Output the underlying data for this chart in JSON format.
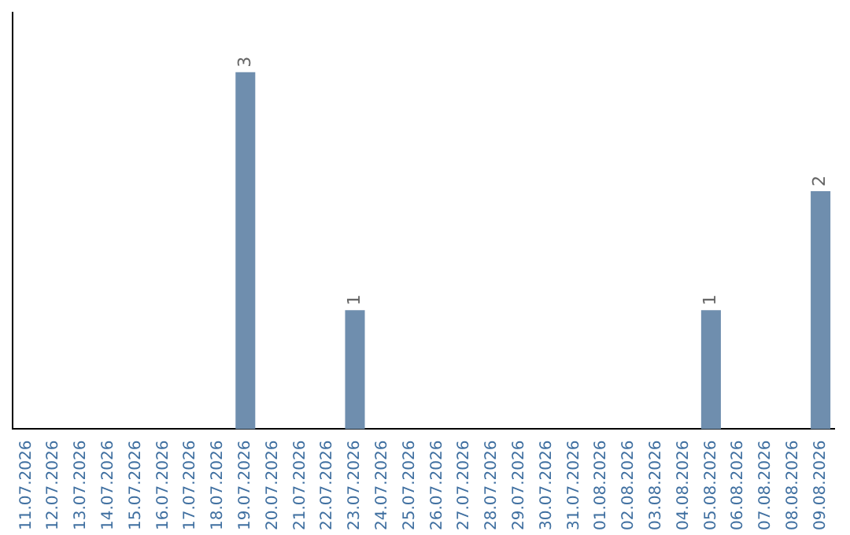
{
  "chart_data": {
    "type": "bar",
    "categories": [
      "11.07.2026",
      "12.07.2026",
      "13.07.2026",
      "14.07.2026",
      "15.07.2026",
      "16.07.2026",
      "17.07.2026",
      "18.07.2026",
      "19.07.2026",
      "20.07.2026",
      "21.07.2026",
      "22.07.2026",
      "23.07.2026",
      "24.07.2026",
      "25.07.2026",
      "26.07.2026",
      "27.07.2026",
      "28.07.2026",
      "29.07.2026",
      "30.07.2026",
      "31.07.2026",
      "01.08.2026",
      "02.08.2026",
      "03.08.2026",
      "04.08.2026",
      "05.08.2026",
      "06.08.2026",
      "07.08.2026",
      "08.08.2026",
      "09.08.2026"
    ],
    "values": [
      0,
      0,
      0,
      0,
      0,
      0,
      0,
      0,
      3,
      0,
      0,
      0,
      1,
      0,
      0,
      0,
      0,
      0,
      0,
      0,
      0,
      0,
      0,
      0,
      0,
      1,
      0,
      0,
      0,
      2
    ],
    "color": "#6f8eae",
    "value_labels": [
      null,
      null,
      null,
      null,
      null,
      null,
      null,
      null,
      "3",
      null,
      null,
      null,
      "1",
      null,
      null,
      null,
      null,
      null,
      null,
      null,
      null,
      null,
      null,
      null,
      null,
      "1",
      null,
      null,
      null,
      "2"
    ],
    "grid": false,
    "legend": false,
    "tick_labels": "x"
  }
}
